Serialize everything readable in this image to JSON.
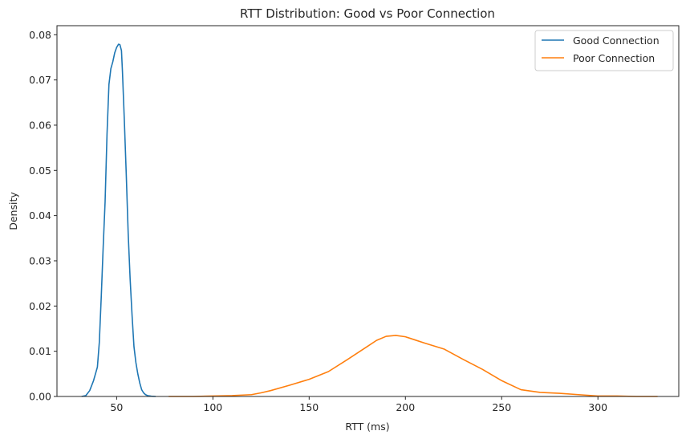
{
  "chart_data": {
    "type": "line",
    "title": "RTT Distribution: Good vs Poor Connection",
    "xlabel": "RTT (ms)",
    "ylabel": "Density",
    "xlim": [
      19,
      342
    ],
    "ylim": [
      0,
      0.082
    ],
    "x_ticks": [
      50,
      100,
      150,
      200,
      250,
      300
    ],
    "y_ticks": [
      0.0,
      0.01,
      0.02,
      0.03,
      0.04,
      0.05,
      0.06,
      0.07,
      0.08
    ],
    "y_tick_labels": [
      "0.00",
      "0.01",
      "0.02",
      "0.03",
      "0.04",
      "0.05",
      "0.06",
      "0.07",
      "0.08"
    ],
    "x_tick_labels": [
      "50",
      "100",
      "150",
      "200",
      "250",
      "300"
    ],
    "grid": false,
    "legend_position": "top-right",
    "series": [
      {
        "name": "Good Connection",
        "color": "#1f77b4",
        "x": [
          31.8,
          34.0,
          36.0,
          38.0,
          40.0,
          41.0,
          42.0,
          43.0,
          44.0,
          45.0,
          46.0,
          47.0,
          48.0,
          49.0,
          50.0,
          51.0,
          51.7,
          52.5,
          53.0,
          54.0,
          55.0,
          56.0,
          57.0,
          58.0,
          59.0,
          60.0,
          61.0,
          62.0,
          63.0,
          64.0,
          65.0,
          66.0,
          68.0,
          70.3
        ],
        "y": [
          0.0,
          0.0002,
          0.0013,
          0.0035,
          0.0065,
          0.012,
          0.022,
          0.033,
          0.043,
          0.058,
          0.069,
          0.0725,
          0.074,
          0.076,
          0.0772,
          0.0779,
          0.0778,
          0.0765,
          0.072,
          0.061,
          0.049,
          0.036,
          0.026,
          0.018,
          0.011,
          0.0075,
          0.005,
          0.003,
          0.0015,
          0.0008,
          0.0004,
          0.0002,
          5e-05,
          0.0
        ]
      },
      {
        "name": "Poor Connection",
        "color": "#ff7f0e",
        "x": [
          77,
          90,
          100,
          110,
          120,
          125,
          130,
          140,
          150,
          160,
          170,
          180,
          185,
          190,
          195,
          200,
          205,
          210,
          220,
          230,
          240,
          250,
          260,
          270,
          280,
          290,
          300,
          310,
          320,
          331
        ],
        "y": [
          0.0,
          0.0,
          0.0001,
          0.0002,
          0.0004,
          0.0008,
          0.0013,
          0.0025,
          0.0038,
          0.0055,
          0.0082,
          0.011,
          0.0124,
          0.0133,
          0.0135,
          0.0132,
          0.0125,
          0.0118,
          0.0105,
          0.0082,
          0.006,
          0.0035,
          0.0015,
          0.0009,
          0.0007,
          0.0004,
          0.0001,
          0.0001,
          0.0,
          0.0
        ]
      }
    ]
  }
}
